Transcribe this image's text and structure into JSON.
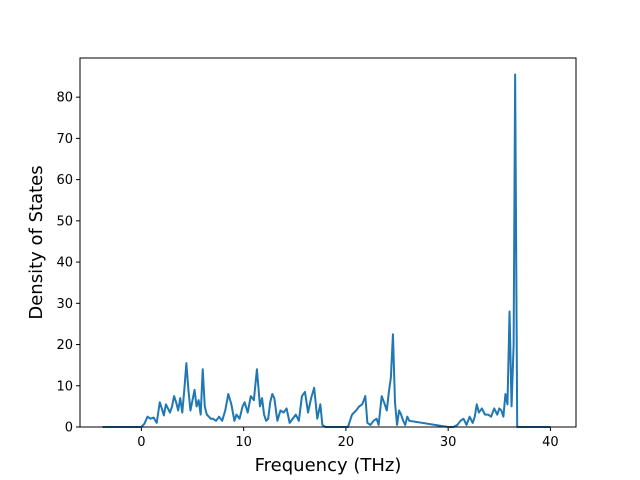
{
  "chart_data": {
    "type": "line",
    "title": "",
    "xlabel": "Frequency (THz)",
    "ylabel": "Density of States",
    "xlim": [
      -6,
      42.5
    ],
    "ylim": [
      0,
      89.5
    ],
    "xticks": [
      0,
      10,
      20,
      30,
      40
    ],
    "yticks": [
      0,
      10,
      20,
      30,
      40,
      50,
      60,
      70,
      80
    ],
    "grid": false,
    "legend": "none",
    "series": [
      {
        "color": "#1f77b4",
        "x": [
          -3.8,
          0.0,
          0.3,
          0.6,
          0.9,
          1.2,
          1.5,
          1.8,
          2.0,
          2.2,
          2.4,
          2.6,
          2.8,
          3.0,
          3.2,
          3.4,
          3.6,
          3.8,
          4.0,
          4.2,
          4.4,
          4.6,
          4.8,
          5.0,
          5.2,
          5.4,
          5.6,
          5.8,
          6.0,
          6.2,
          6.4,
          6.6,
          6.8,
          7.0,
          7.3,
          7.6,
          7.9,
          8.2,
          8.5,
          8.8,
          9.1,
          9.3,
          9.6,
          9.9,
          10.1,
          10.4,
          10.7,
          11.0,
          11.3,
          11.6,
          11.8,
          12.0,
          12.2,
          12.4,
          12.6,
          12.8,
          13.0,
          13.3,
          13.6,
          13.9,
          14.2,
          14.5,
          14.8,
          15.1,
          15.4,
          15.7,
          16.0,
          16.3,
          16.6,
          16.9,
          17.2,
          17.5,
          17.7,
          18.0,
          18.4,
          20.2,
          20.6,
          21.0,
          21.3,
          21.6,
          21.9,
          22.1,
          22.4,
          22.7,
          23.0,
          23.2,
          23.5,
          23.8,
          24.0,
          24.2,
          24.4,
          24.6,
          24.8,
          25.0,
          25.2,
          25.4,
          25.6,
          25.8,
          26.0,
          26.2,
          30.0,
          30.5,
          30.9,
          31.2,
          31.5,
          31.8,
          32.1,
          32.4,
          32.6,
          32.8,
          33.0,
          33.3,
          33.6,
          33.9,
          34.2,
          34.5,
          34.8,
          35.0,
          35.2,
          35.4,
          35.6,
          35.8,
          36.0,
          36.2,
          36.4,
          36.55,
          36.75,
          36.95,
          40.0
        ],
        "y": [
          0,
          0,
          0.8,
          2.5,
          2,
          2.3,
          1.0,
          6.0,
          4.5,
          2.8,
          5.5,
          4.5,
          3.5,
          5.0,
          7.5,
          6.0,
          4.0,
          7.0,
          3.5,
          9.0,
          15.5,
          9.0,
          4.0,
          6.5,
          9.0,
          5.0,
          6.5,
          3.0,
          14.0,
          5.0,
          3.0,
          2.5,
          2.0,
          2.0,
          1.5,
          2.5,
          1.5,
          4.0,
          8.0,
          5.5,
          1.5,
          3.0,
          2.0,
          5.0,
          6.0,
          3.5,
          7.5,
          6.5,
          14.0,
          5.0,
          7.0,
          3.0,
          1.5,
          2.0,
          6.0,
          8.0,
          7.0,
          1.5,
          4.0,
          3.5,
          4.5,
          1.0,
          2.0,
          3.0,
          1.5,
          7.5,
          8.5,
          3.5,
          7.0,
          9.5,
          2.0,
          5.5,
          0.5,
          0,
          0,
          0,
          3.0,
          4.0,
          5.0,
          5.5,
          7.5,
          1.0,
          0.5,
          1.5,
          2.0,
          0.5,
          7.5,
          5.5,
          4.0,
          8.5,
          12.0,
          22.5,
          6.0,
          0.5,
          4.0,
          3.0,
          1.5,
          0.5,
          2.5,
          1.5,
          0,
          0,
          0.5,
          1.5,
          2.0,
          0.5,
          2.5,
          1.0,
          2.5,
          5.5,
          3.5,
          4.5,
          3.0,
          3.0,
          2.5,
          4.5,
          3.0,
          4.5,
          4.0,
          2.5,
          8.0,
          5.5,
          28.0,
          5.0,
          20.0,
          85.5,
          0,
          0,
          0
        ]
      }
    ]
  }
}
